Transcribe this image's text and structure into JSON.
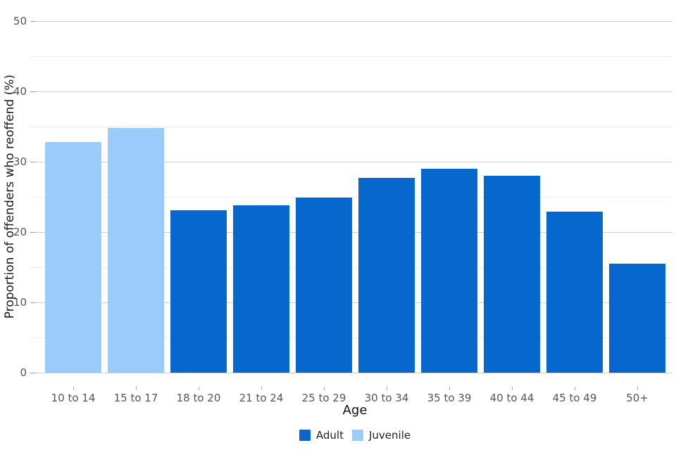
{
  "chart_data": {
    "type": "bar",
    "title": "",
    "xlabel": "Age",
    "ylabel": "Proportion of offenders who reoffend (%)",
    "categories": [
      "10 to 14",
      "15 to 17",
      "18 to 20",
      "21 to 24",
      "25 to 29",
      "30 to 34",
      "35 to 39",
      "40 to 44",
      "45 to 49",
      "50+"
    ],
    "values": [
      32.8,
      34.8,
      23.1,
      23.8,
      24.9,
      27.7,
      29.0,
      28.0,
      22.9,
      15.5
    ],
    "bar_groups": [
      "Juvenile",
      "Juvenile",
      "Adult",
      "Adult",
      "Adult",
      "Adult",
      "Adult",
      "Adult",
      "Adult",
      "Adult"
    ],
    "series": [
      {
        "name": "Adult",
        "color": "#0667CD",
        "values": [
          null,
          null,
          23.1,
          23.8,
          24.9,
          27.7,
          29.0,
          28.0,
          22.9,
          15.5
        ]
      },
      {
        "name": "Juvenile",
        "color": "#99CCFA",
        "values": [
          32.8,
          34.8,
          null,
          null,
          null,
          null,
          null,
          null,
          null,
          null
        ]
      }
    ],
    "ylim": [
      0,
      50
    ],
    "yticks": [
      0,
      10,
      20,
      30,
      40,
      50
    ],
    "yticks_minor": [
      5,
      15,
      25,
      35,
      45
    ],
    "grid": "horizontal major and minor gridlines, light gray, white background",
    "legend_position": "bottom-center"
  },
  "legend": {
    "entries": [
      {
        "label": "Adult",
        "color": "#0667CD"
      },
      {
        "label": "Juvenile",
        "color": "#99CCFA"
      }
    ]
  },
  "colors": {
    "adult": "#0667CD",
    "juvenile": "#99CCFA",
    "grid_major": "#cbcbcb",
    "grid_minor": "#ececec",
    "tick": "#9a9a9a",
    "tick_label": "#545454",
    "axis_title": "#1a1a1a",
    "background": "#ffffff"
  }
}
